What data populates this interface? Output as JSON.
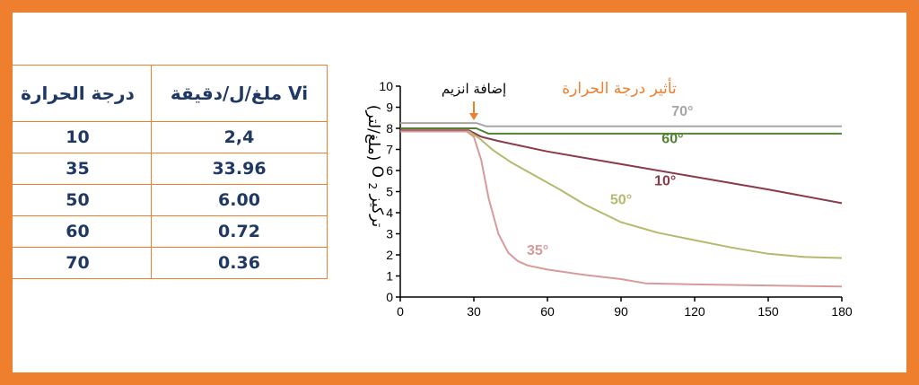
{
  "table": {
    "headers": {
      "rate": "Vi ملغ/ل/دقيقة",
      "temperature": "درجة الحرارة"
    },
    "rows": [
      {
        "temperature": "10",
        "rate": "2,4"
      },
      {
        "temperature": "35",
        "rate": "33.96"
      },
      {
        "temperature": "50",
        "rate": "6.00"
      },
      {
        "temperature": "60",
        "rate": "0.72"
      },
      {
        "temperature": "70",
        "rate": "0.36"
      }
    ]
  },
  "colors": {
    "frame": "#ed7f2e",
    "table_text": "#1f3864",
    "table_border": "#ed7f2e"
  },
  "chart_data": {
    "type": "line",
    "title": "تأثير درجة الحرارة",
    "ylabel_prefix": "تركيز",
    "ylabel_species": "O",
    "ylabel_subscript": "2",
    "ylabel_unit": "(ملغ/لتر)",
    "xlim": [
      0,
      180
    ],
    "ylim": [
      0,
      10
    ],
    "x_ticks": [
      0,
      30,
      60,
      90,
      120,
      150,
      180
    ],
    "y_ticks": [
      0,
      1,
      2,
      3,
      4,
      5,
      6,
      7,
      8,
      9,
      10
    ],
    "grid": false,
    "annotations": [
      {
        "text": "إضافة انزيم",
        "x": 30,
        "arrow": true,
        "color": "#ed7f2e"
      }
    ],
    "series": [
      {
        "name": "70°",
        "color": "#a6a6a6",
        "x": [
          0,
          31,
          35,
          180
        ],
        "y": [
          8.25,
          8.25,
          8.1,
          8.1
        ],
        "label_pos": [
          115,
          8.6
        ]
      },
      {
        "name": "60°",
        "color": "#548235",
        "x": [
          0,
          31,
          36,
          180
        ],
        "y": [
          8.0,
          8.0,
          7.75,
          7.75
        ],
        "label_pos": [
          111,
          7.3
        ]
      },
      {
        "name": "10°",
        "color": "#8b3a4a",
        "x": [
          0,
          28,
          33,
          40,
          60,
          90,
          120,
          150,
          180
        ],
        "y": [
          7.9,
          7.9,
          7.6,
          7.4,
          6.9,
          6.3,
          5.7,
          5.1,
          4.45
        ],
        "label_pos": [
          108,
          5.3
        ]
      },
      {
        "name": "50°",
        "color": "#b5b96c",
        "x": [
          0,
          28,
          32,
          38,
          45,
          55,
          65,
          75,
          90,
          105,
          120,
          135,
          150,
          165,
          180
        ],
        "y": [
          7.85,
          7.85,
          7.55,
          6.95,
          6.4,
          5.75,
          5.1,
          4.4,
          3.55,
          3.05,
          2.7,
          2.35,
          2.05,
          1.9,
          1.85
        ],
        "label_pos": [
          90,
          4.4
        ]
      },
      {
        "name": "35°",
        "color": "#d89a9a",
        "x": [
          0,
          27,
          30,
          33,
          36,
          40,
          44,
          48,
          52,
          60,
          75,
          90,
          100,
          120,
          150,
          180
        ],
        "y": [
          7.85,
          7.85,
          7.6,
          6.5,
          4.7,
          3.0,
          2.1,
          1.7,
          1.5,
          1.3,
          1.05,
          0.85,
          0.65,
          0.6,
          0.55,
          0.5
        ],
        "label_pos": [
          56,
          2.0
        ]
      }
    ]
  }
}
